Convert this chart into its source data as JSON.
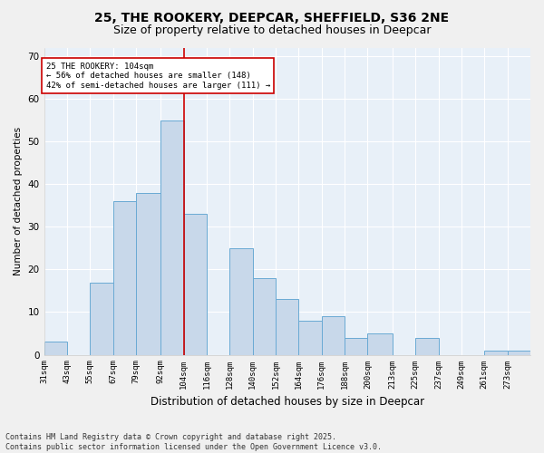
{
  "title1": "25, THE ROOKERY, DEEPCAR, SHEFFIELD, S36 2NE",
  "title2": "Size of property relative to detached houses in Deepcar",
  "xlabel": "Distribution of detached houses by size in Deepcar",
  "ylabel": "Number of detached properties",
  "bar_color": "#c8d8ea",
  "bar_edge_color": "#6aaad4",
  "bg_color": "#e8f0f8",
  "grid_color": "#ffffff",
  "categories": [
    "31sqm",
    "43sqm",
    "55sqm",
    "67sqm",
    "79sqm",
    "92sqm",
    "104sqm",
    "116sqm",
    "128sqm",
    "140sqm",
    "152sqm",
    "164sqm",
    "176sqm",
    "188sqm",
    "200sqm",
    "213sqm",
    "225sqm",
    "237sqm",
    "249sqm",
    "261sqm",
    "273sqm"
  ],
  "values": [
    3,
    0,
    17,
    36,
    38,
    55,
    33,
    0,
    25,
    18,
    13,
    8,
    9,
    4,
    5,
    0,
    4,
    0,
    0,
    1,
    1
  ],
  "bin_edges": [
    31,
    43,
    55,
    67,
    79,
    92,
    104,
    116,
    128,
    140,
    152,
    164,
    176,
    188,
    200,
    213,
    225,
    237,
    249,
    261,
    273,
    285
  ],
  "vline_x": 104,
  "vline_color": "#cc0000",
  "annotation_text": "25 THE ROOKERY: 104sqm\n← 56% of detached houses are smaller (148)\n42% of semi-detached houses are larger (111) →",
  "annotation_box_color": "#ffffff",
  "annotation_box_edge": "#cc0000",
  "ylim": [
    0,
    72
  ],
  "yticks": [
    0,
    10,
    20,
    30,
    40,
    50,
    60,
    70
  ],
  "title1_fontsize": 10,
  "title2_fontsize": 9,
  "footnote": "Contains HM Land Registry data © Crown copyright and database right 2025.\nContains public sector information licensed under the Open Government Licence v3.0.",
  "fig_bg": "#f0f0f0"
}
